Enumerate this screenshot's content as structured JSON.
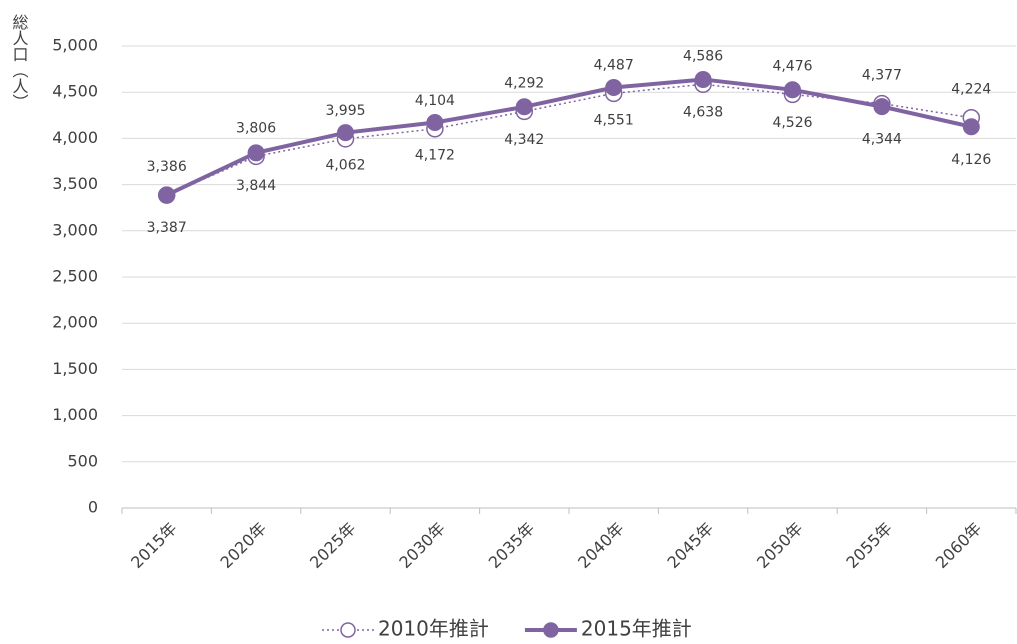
{
  "chart_data": {
    "type": "line",
    "y_label": "総人口（人）",
    "categories": [
      "2015年",
      "2020年",
      "2025年",
      "2030年",
      "2035年",
      "2040年",
      "2045年",
      "2050年",
      "2055年",
      "2060年"
    ],
    "series": [
      {
        "name": "2010年推計",
        "color": "#8064a2",
        "style": "dotted",
        "values": [
          3386,
          3806,
          3995,
          4104,
          4292,
          4487,
          4586,
          4476,
          4377,
          4224
        ],
        "value_labels": [
          "3,386",
          "3,806",
          "3,995",
          "4,104",
          "4,292",
          "4,487",
          "4,586",
          "4,476",
          "4,377",
          "4,224"
        ]
      },
      {
        "name": "2015年推計",
        "color": "#8064a2",
        "style": "solid",
        "values": [
          3387,
          3844,
          4062,
          4172,
          4342,
          4551,
          4638,
          4526,
          4344,
          4126
        ],
        "value_labels": [
          "3,387",
          "3,844",
          "4,062",
          "4,172",
          "4,342",
          "4,551",
          "4,638",
          "4,526",
          "4,344",
          "4,126"
        ]
      }
    ],
    "ylim": [
      0,
      5000
    ],
    "yticks": [
      {
        "value": 0,
        "label": "0"
      },
      {
        "value": 500,
        "label": "500"
      },
      {
        "value": 1000,
        "label": "1,000"
      },
      {
        "value": 1500,
        "label": "1,500"
      },
      {
        "value": 2000,
        "label": "2,000"
      },
      {
        "value": 2500,
        "label": "2,500"
      },
      {
        "value": 3000,
        "label": "3,000"
      },
      {
        "value": 3500,
        "label": "3,500"
      },
      {
        "value": 4000,
        "label": "4,000"
      },
      {
        "value": 4500,
        "label": "4,500"
      },
      {
        "value": 5000,
        "label": "5,000"
      }
    ],
    "grid": true
  }
}
